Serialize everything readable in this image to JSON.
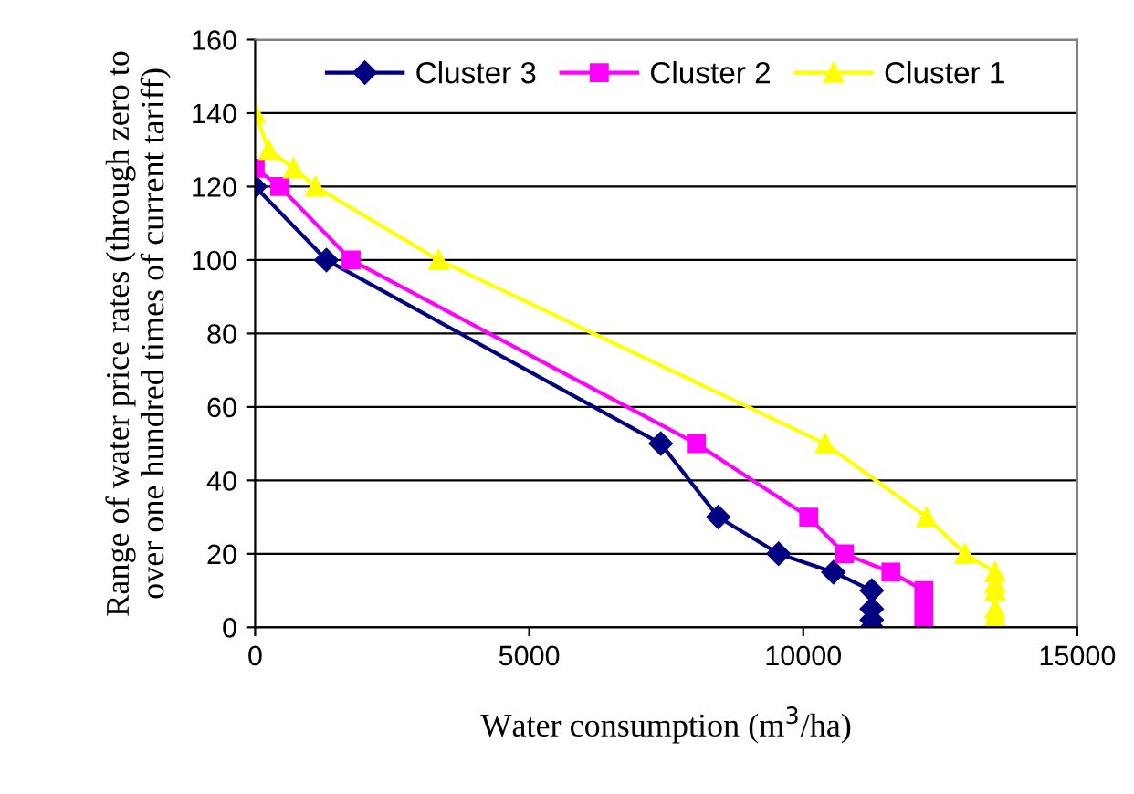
{
  "chart_data": {
    "type": "line",
    "xlabel": "Water consumption (m$^{3}$/ha)",
    "ylabel": "Range of water price rates (through zero to\nover one hundred times of current tariff)",
    "xlim": [
      0,
      15000
    ],
    "xticks": [
      0,
      5000,
      10000,
      15000
    ],
    "ylim": [
      0,
      160
    ],
    "yticks": [
      0,
      20,
      40,
      60,
      80,
      100,
      120,
      140,
      160
    ],
    "grid": "y",
    "legend": "top",
    "series": [
      {
        "name": "Cluster 3",
        "color": "#000080",
        "marker": "diamond",
        "x": [
          0,
          1300,
          7400,
          8450,
          9550,
          10550,
          11250,
          11250,
          11250,
          11250
        ],
        "values": [
          120,
          100,
          50,
          30,
          20,
          15,
          10,
          5,
          2,
          0
        ]
      },
      {
        "name": "Cluster 2",
        "color": "#ff00ff",
        "marker": "square",
        "x": [
          0,
          450,
          1750,
          8050,
          10100,
          10750,
          11600,
          12200,
          12200,
          12200
        ],
        "values": [
          125,
          120,
          100,
          50,
          30,
          20,
          15,
          10,
          5,
          0
        ]
      },
      {
        "name": "Cluster 1",
        "color": "#ffff00",
        "marker": "triangle",
        "x": [
          0,
          250,
          700,
          1100,
          3350,
          10400,
          12250,
          12950,
          13500,
          13500,
          13500,
          13500,
          13500
        ],
        "values": [
          140,
          130,
          125,
          120,
          100,
          50,
          30,
          20,
          15,
          12,
          10,
          5,
          3
        ]
      }
    ]
  }
}
